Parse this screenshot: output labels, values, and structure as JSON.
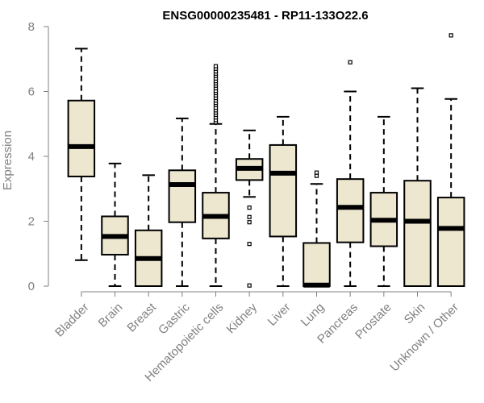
{
  "chart_data": {
    "type": "boxplot",
    "title": "ENSG00000235481 - RP11-133O22.6",
    "xlabel": "",
    "ylabel": "Expression",
    "ylim": [
      0,
      8
    ],
    "yticks": [
      0,
      2,
      4,
      6,
      8
    ],
    "grid": false,
    "box_color": "#ede7d0",
    "median_color": "#000000",
    "categories": [
      "Bladder",
      "Brain",
      "Breast",
      "Gastric",
      "Hematopoietic cells",
      "Kidney",
      "Liver",
      "Lung",
      "Pancreas",
      "Prostate",
      "Skin",
      "Unknown / Other"
    ],
    "boxes": [
      {
        "category": "Bladder",
        "min": 0.8,
        "q1": 3.38,
        "median": 4.3,
        "q3": 5.72,
        "max": 7.32,
        "outliers": []
      },
      {
        "category": "Brain",
        "min": 0.0,
        "q1": 0.97,
        "median": 1.53,
        "q3": 2.15,
        "max": 3.78,
        "outliers": []
      },
      {
        "category": "Breast",
        "min": 0.0,
        "q1": 0.0,
        "median": 0.85,
        "q3": 1.72,
        "max": 3.42,
        "outliers": []
      },
      {
        "category": "Gastric",
        "min": 0.0,
        "q1": 1.97,
        "median": 3.13,
        "q3": 3.57,
        "max": 5.17,
        "outliers": []
      },
      {
        "category": "Hematopoietic cells",
        "min": 0.0,
        "q1": 1.47,
        "median": 2.15,
        "q3": 2.88,
        "max": 5.0,
        "outliers": [
          5.05,
          5.12,
          5.2,
          5.28,
          5.35,
          5.42,
          5.5,
          5.58,
          5.65,
          5.72,
          5.8,
          5.88,
          5.95,
          6.02,
          6.1,
          6.18,
          6.25,
          6.32,
          6.4,
          6.48,
          6.55,
          6.62,
          6.7,
          6.78
        ]
      },
      {
        "category": "Kidney",
        "min": 2.75,
        "q1": 3.27,
        "median": 3.63,
        "q3": 3.92,
        "max": 4.8,
        "outliers": [
          2.42,
          2.13,
          1.97,
          1.3,
          0.02
        ]
      },
      {
        "category": "Liver",
        "min": 0.0,
        "q1": 1.53,
        "median": 3.48,
        "q3": 4.35,
        "max": 5.22,
        "outliers": []
      },
      {
        "category": "Lung",
        "min": 0.0,
        "q1": 0.0,
        "median": 0.03,
        "q3": 1.33,
        "max": 3.15,
        "outliers": [
          3.4,
          3.5
        ]
      },
      {
        "category": "Pancreas",
        "min": 0.0,
        "q1": 1.35,
        "median": 2.43,
        "q3": 3.3,
        "max": 6.0,
        "outliers": [
          6.9
        ]
      },
      {
        "category": "Prostate",
        "min": 0.0,
        "q1": 1.23,
        "median": 2.03,
        "q3": 2.88,
        "max": 5.22,
        "outliers": []
      },
      {
        "category": "Skin",
        "min": 0.0,
        "q1": 0.0,
        "median": 2.0,
        "q3": 3.25,
        "max": 6.1,
        "outliers": []
      },
      {
        "category": "Unknown / Other",
        "min": 0.0,
        "q1": 0.0,
        "median": 1.78,
        "q3": 2.73,
        "max": 5.77,
        "outliers": [
          7.73
        ]
      }
    ]
  }
}
